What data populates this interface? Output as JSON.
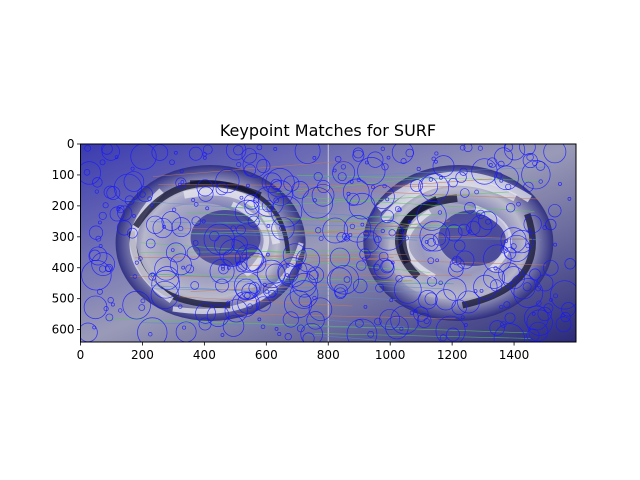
{
  "chart_data": {
    "type": "image",
    "title": "Keypoint Matches for SURF",
    "xlabel": "",
    "ylabel": "",
    "xlim": [
      0,
      1600
    ],
    "ylim": [
      640,
      0
    ],
    "x_ticks": [
      0,
      200,
      400,
      600,
      800,
      1000,
      1200,
      1400
    ],
    "y_ticks": [
      0,
      100,
      200,
      300,
      400,
      500,
      600
    ],
    "image_width": 1600,
    "image_height": 640,
    "panels": [
      {
        "name": "left",
        "x_range": [
          0,
          800
        ]
      },
      {
        "name": "right",
        "x_range": [
          800,
          1600
        ]
      }
    ],
    "colors": {
      "keypoint": "#1a1aff",
      "background_dark": "#2a2a8c",
      "background_light": "#b8b8c8",
      "match_line_1": "#c87a5a",
      "match_line_2": "#5ac85a",
      "match_line_3": "#5a8ac8"
    }
  }
}
